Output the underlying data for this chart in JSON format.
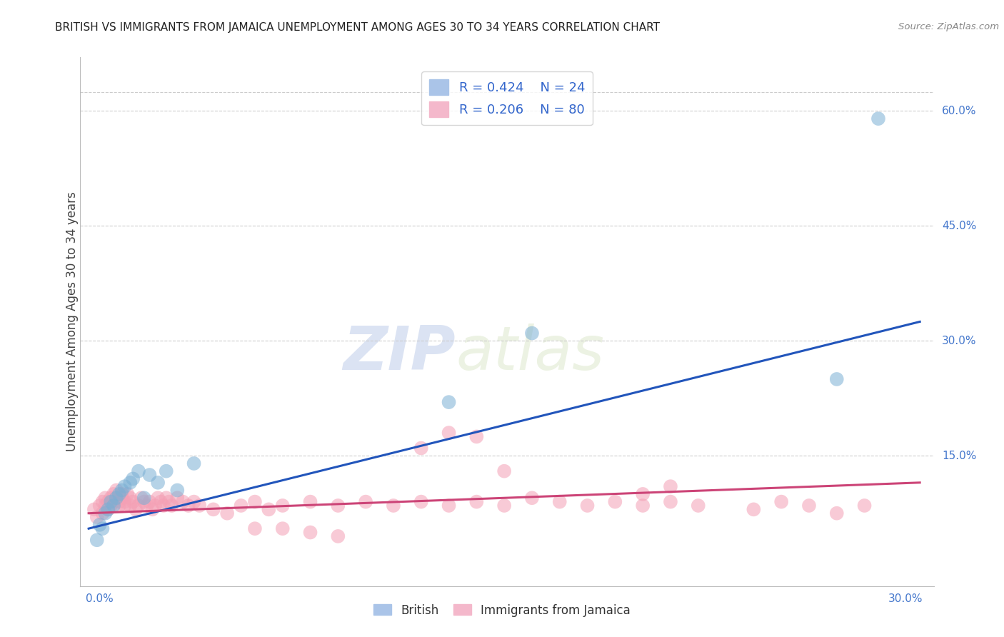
{
  "title": "BRITISH VS IMMIGRANTS FROM JAMAICA UNEMPLOYMENT AMONG AGES 30 TO 34 YEARS CORRELATION CHART",
  "source": "Source: ZipAtlas.com",
  "ylabel": "Unemployment Among Ages 30 to 34 years",
  "ytick_vals": [
    0.6,
    0.45,
    0.3,
    0.15
  ],
  "ytick_labels": [
    "60.0%",
    "45.0%",
    "30.0%",
    "15.0%"
  ],
  "xlim": [
    0.0,
    0.3
  ],
  "ylim": [
    0.0,
    0.65
  ],
  "legend_r1": "R = 0.424",
  "legend_n1": "N = 24",
  "legend_r2": "R = 0.206",
  "legend_n2": "N = 80",
  "british_color": "#7bafd4",
  "jamaica_color": "#f4a0b5",
  "british_line_color": "#2255bb",
  "jamaica_line_color": "#cc4477",
  "watermark_zip": "ZIP",
  "watermark_atlas": "atlas",
  "background_color": "#ffffff",
  "grid_color": "#cccccc",
  "brit_line_x0": 0.0,
  "brit_line_y0": 0.055,
  "brit_line_x1": 0.3,
  "brit_line_y1": 0.325,
  "jam_line_x0": 0.0,
  "jam_line_y0": 0.075,
  "jam_line_x1": 0.3,
  "jam_line_y1": 0.115,
  "british_x": [
    0.003,
    0.004,
    0.005,
    0.006,
    0.007,
    0.008,
    0.009,
    0.01,
    0.011,
    0.012,
    0.013,
    0.015,
    0.016,
    0.018,
    0.02,
    0.022,
    0.025,
    0.028,
    0.032,
    0.038,
    0.13,
    0.16,
    0.27,
    0.285
  ],
  "british_y": [
    0.04,
    0.06,
    0.055,
    0.075,
    0.08,
    0.09,
    0.085,
    0.095,
    0.1,
    0.105,
    0.11,
    0.115,
    0.12,
    0.13,
    0.095,
    0.125,
    0.115,
    0.13,
    0.105,
    0.14,
    0.22,
    0.31,
    0.25,
    0.59
  ],
  "jamaica_x": [
    0.002,
    0.003,
    0.004,
    0.005,
    0.005,
    0.006,
    0.006,
    0.007,
    0.007,
    0.008,
    0.008,
    0.009,
    0.009,
    0.01,
    0.01,
    0.011,
    0.011,
    0.012,
    0.012,
    0.013,
    0.013,
    0.014,
    0.015,
    0.015,
    0.016,
    0.017,
    0.018,
    0.019,
    0.02,
    0.021,
    0.022,
    0.023,
    0.024,
    0.025,
    0.026,
    0.027,
    0.028,
    0.029,
    0.03,
    0.032,
    0.034,
    0.036,
    0.038,
    0.04,
    0.045,
    0.05,
    0.055,
    0.06,
    0.065,
    0.07,
    0.08,
    0.09,
    0.1,
    0.11,
    0.12,
    0.13,
    0.14,
    0.15,
    0.16,
    0.17,
    0.18,
    0.19,
    0.2,
    0.21,
    0.14,
    0.15,
    0.2,
    0.21,
    0.22,
    0.24,
    0.25,
    0.26,
    0.27,
    0.28,
    0.12,
    0.13,
    0.06,
    0.07,
    0.08,
    0.09
  ],
  "jamaica_y": [
    0.08,
    0.07,
    0.085,
    0.09,
    0.075,
    0.095,
    0.085,
    0.08,
    0.09,
    0.095,
    0.085,
    0.1,
    0.09,
    0.095,
    0.105,
    0.085,
    0.09,
    0.095,
    0.1,
    0.085,
    0.09,
    0.1,
    0.095,
    0.085,
    0.09,
    0.08,
    0.085,
    0.095,
    0.09,
    0.085,
    0.09,
    0.08,
    0.085,
    0.095,
    0.09,
    0.085,
    0.095,
    0.09,
    0.085,
    0.095,
    0.09,
    0.085,
    0.09,
    0.085,
    0.08,
    0.075,
    0.085,
    0.09,
    0.08,
    0.085,
    0.09,
    0.085,
    0.09,
    0.085,
    0.09,
    0.085,
    0.09,
    0.085,
    0.095,
    0.09,
    0.085,
    0.09,
    0.085,
    0.09,
    0.175,
    0.13,
    0.1,
    0.11,
    0.085,
    0.08,
    0.09,
    0.085,
    0.075,
    0.085,
    0.16,
    0.18,
    0.055,
    0.055,
    0.05,
    0.045
  ]
}
